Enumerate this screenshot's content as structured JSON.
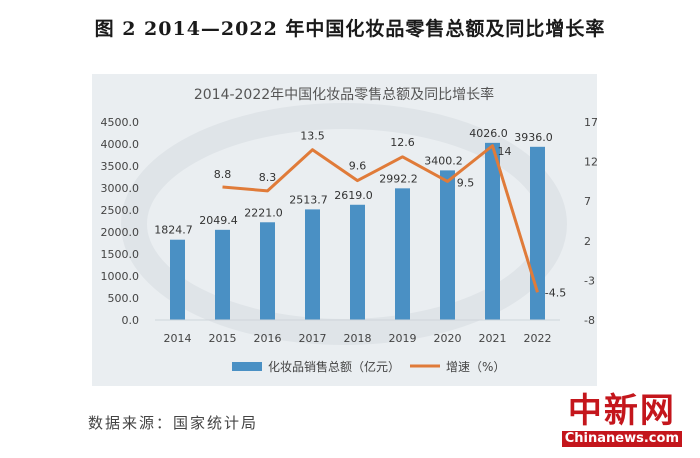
{
  "figure_title": "图 2  2014—2022 年中国化妆品零售总额及同比增长率",
  "source": "数据来源：国家统计局",
  "logo": {
    "cn": "中新网",
    "en": "Chinanews.com"
  },
  "chart_data": {
    "type": "bar",
    "title": "2014-2022年中国化妆品零售总额及同比增长率",
    "categories": [
      "2014",
      "2015",
      "2016",
      "2017",
      "2018",
      "2019",
      "2020",
      "2021",
      "2022"
    ],
    "series": [
      {
        "name": "化妆品销售总额（亿元）",
        "type": "bar",
        "axis": "left",
        "color": "#4a90c4",
        "values": [
          1824.7,
          2049.4,
          2221.0,
          2513.7,
          2619.0,
          2992.2,
          3400.2,
          4026.0,
          3936.0
        ],
        "labels": [
          "1824.7",
          "2049.4",
          "2221.0",
          "2513.7",
          "2619.0",
          "2992.2",
          "3400.2",
          "4026.0",
          "3936.0"
        ]
      },
      {
        "name": "增速（%）",
        "type": "line",
        "axis": "right",
        "color": "#e07b39",
        "values": [
          null,
          8.8,
          8.3,
          13.5,
          9.6,
          12.6,
          9.5,
          14,
          -4.5
        ],
        "labels": [
          "",
          "8.8",
          "8.3",
          "13.5",
          "9.6",
          "12.6",
          "9.5",
          "14",
          "-4.5"
        ]
      }
    ],
    "y_left": {
      "min": 0,
      "max": 4500,
      "ticks": [
        "0.0",
        "500.0",
        "1000.0",
        "1500.0",
        "2000.0",
        "2500.0",
        "3000.0",
        "3500.0",
        "4000.0",
        "4500.0"
      ]
    },
    "y_right": {
      "min": -8,
      "max": 17,
      "ticks": [
        "-8",
        "-3",
        "2",
        "7",
        "12",
        "17"
      ]
    },
    "legend_position": "bottom",
    "grid": false
  }
}
